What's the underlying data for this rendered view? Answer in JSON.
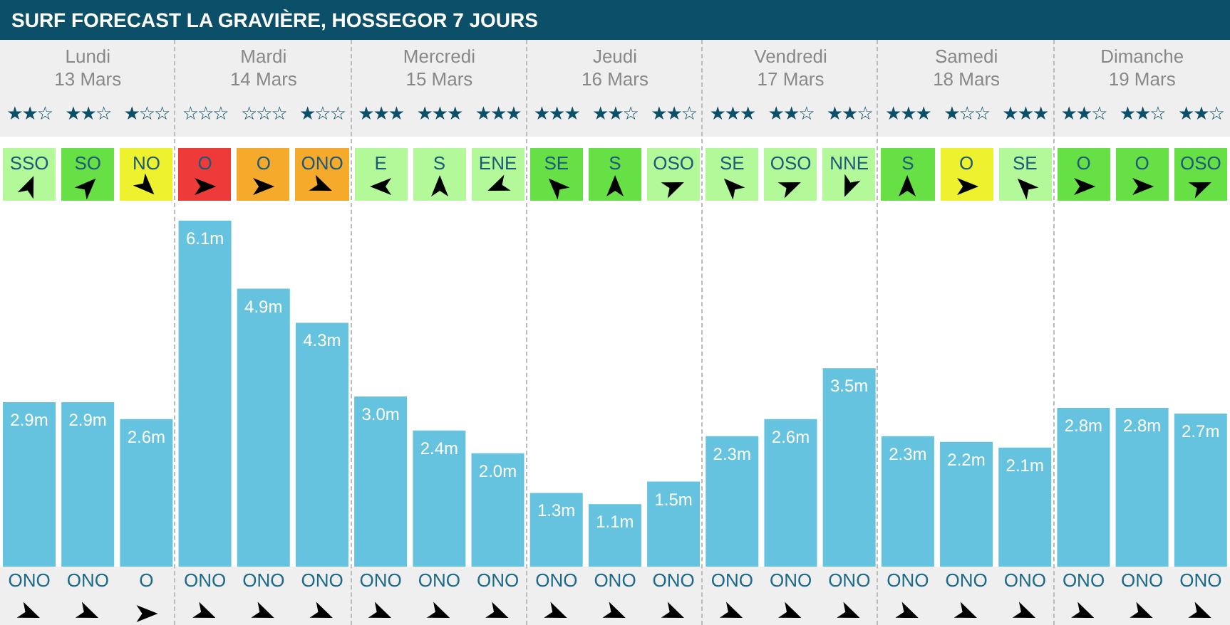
{
  "chart_data": {
    "type": "bar",
    "title": "SURF FORECAST LA GRAVIÈRE, HOSSEGOR 7 JOURS",
    "categories": [
      "ONO",
      "ONO",
      "O",
      "ONO",
      "ONO",
      "ONO",
      "ONO",
      "ONO",
      "ONO",
      "ONO",
      "ONO",
      "ONO",
      "ONO",
      "ONO",
      "ONO",
      "ONO",
      "ONO",
      "ONO",
      "ONO",
      "ONO",
      "ONO"
    ],
    "values": [
      2.9,
      2.9,
      2.6,
      6.1,
      4.9,
      4.3,
      3.0,
      2.4,
      2.0,
      1.3,
      1.1,
      1.5,
      2.3,
      2.6,
      3.5,
      2.3,
      2.2,
      2.1,
      2.8,
      2.8,
      2.7
    ],
    "value_labels": [
      "2.9m",
      "2.9m",
      "2.6m",
      "6.1m",
      "4.9m",
      "4.3m",
      "3.0m",
      "2.4m",
      "2.0m",
      "1.3m",
      "1.1m",
      "1.5m",
      "2.3m",
      "2.6m",
      "3.5m",
      "2.3m",
      "2.2m",
      "2.1m",
      "2.8m",
      "2.8m",
      "2.7m"
    ],
    "color": "#66c3df",
    "annotations": [
      "Lundi 13 Mars",
      "Mardi 14 Mars",
      "Mercredi 15 Mars",
      "Jeudi 16 Mars",
      "Vendredi 17 Mars",
      "Samedi 18 Mars",
      "Dimanche 19 Mars",
      "★★☆",
      "★★☆",
      "★☆☆",
      "☆☆☆",
      "☆☆☆",
      "★☆☆",
      "★★★",
      "★★★",
      "★★★",
      "★★★",
      "★★☆",
      "★★☆",
      "★★★",
      "★★☆",
      "★★☆",
      "★★★",
      "★☆☆",
      "★★★",
      "★★☆",
      "★★☆",
      "★★☆",
      "SSO",
      "SO",
      "NO",
      "O",
      "O",
      "ONO",
      "E",
      "S",
      "ENE",
      "SE",
      "S",
      "OSO",
      "SE",
      "OSO",
      "NNE",
      "S",
      "O",
      "SE",
      "O",
      "O",
      "OSO"
    ],
    "xlabel": null
  }
}
